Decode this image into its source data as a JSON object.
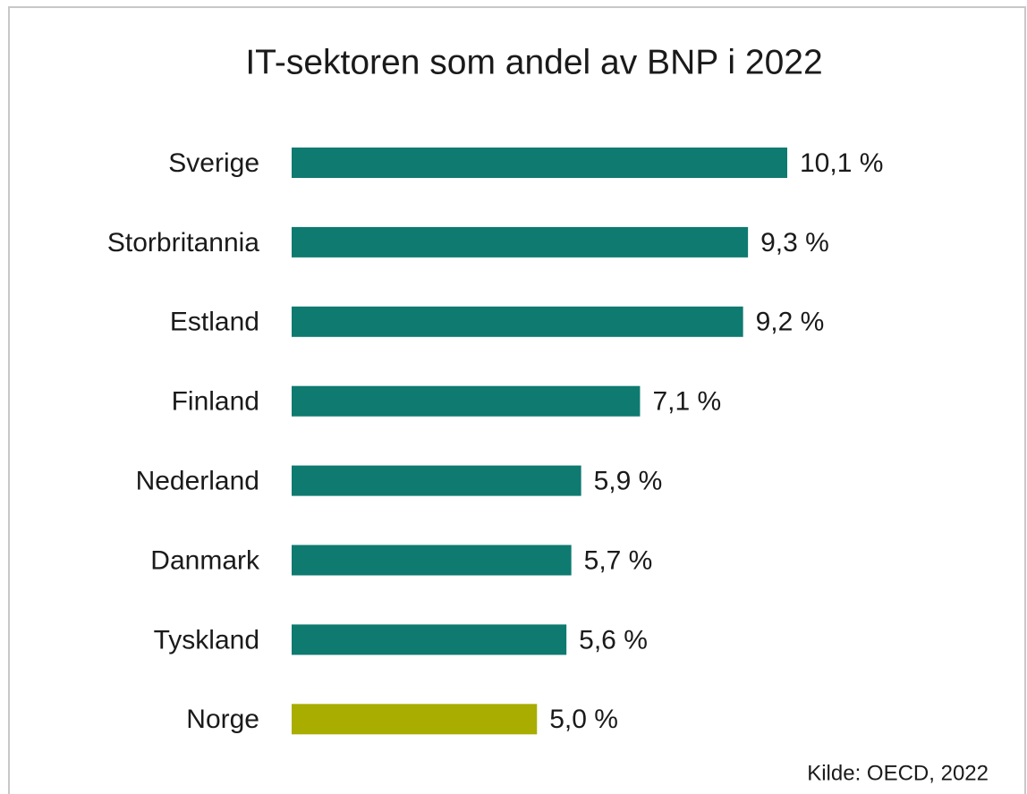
{
  "chart_data": {
    "type": "barh",
    "title": "IT-sektoren som andel av BNP i 2022",
    "categories": [
      "Sverige",
      "Storbritannia",
      "Estland",
      "Finland",
      "Nederland",
      "Danmark",
      "Tyskland",
      "Norge"
    ],
    "values": [
      10.1,
      9.3,
      9.2,
      7.1,
      5.9,
      5.7,
      5.6,
      5.0
    ],
    "value_labels": [
      "10,1 %",
      "9,3 %",
      "9,2 %",
      "7,1 %",
      "5,9 %",
      "5,7 %",
      "5,6 %",
      "5,0 %"
    ],
    "colors": [
      "#0e7a70",
      "#0e7a70",
      "#0e7a70",
      "#0e7a70",
      "#0e7a70",
      "#0e7a70",
      "#0e7a70",
      "#a8ad00"
    ],
    "source": "Kilde: OECD, 2022"
  }
}
